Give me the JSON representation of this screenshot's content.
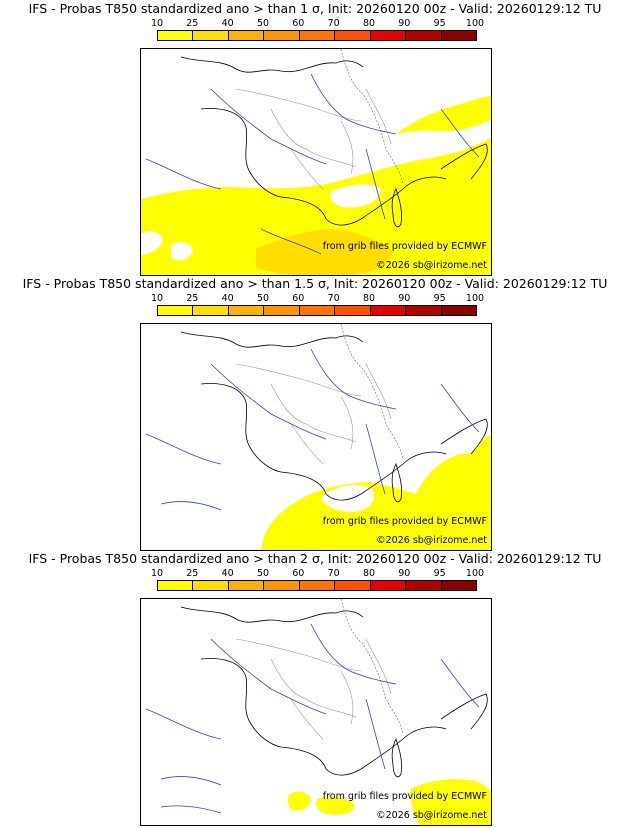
{
  "legend": {
    "ticks": [
      "10",
      "25",
      "40",
      "50",
      "60",
      "70",
      "80",
      "90",
      "95",
      "100"
    ],
    "colors": [
      "#ffff00",
      "#ffde00",
      "#ffb300",
      "#ff9500",
      "#ff7300",
      "#ff4f00",
      "#e60000",
      "#b30000",
      "#8a0000",
      "#5a0000"
    ]
  },
  "credits": {
    "source": "from grib files provided by ECMWF",
    "site": "©2026 sb@irizome.net"
  },
  "panels": [
    {
      "title": "IFS - Probas T850  standardized ano > than 1 σ, Init: 20260120 00z - Valid: 20260129:12 TU",
      "anomaly_threshold_sigma": 1,
      "coverage_classes": [
        "10-25",
        "25-40"
      ]
    },
    {
      "title": "IFS - Probas T850  standardized ano > than 1.5 σ, Init: 20260120 00z - Valid: 20260129:12 TU",
      "anomaly_threshold_sigma": 1.5,
      "coverage_classes": [
        "10-25"
      ]
    },
    {
      "title": "IFS - Probas T850  standardized ano > than 2 σ, Init: 20260120 00z - Valid: 20260129:12 TU",
      "anomaly_threshold_sigma": 2,
      "coverage_classes": [
        "10-25"
      ]
    }
  ]
}
